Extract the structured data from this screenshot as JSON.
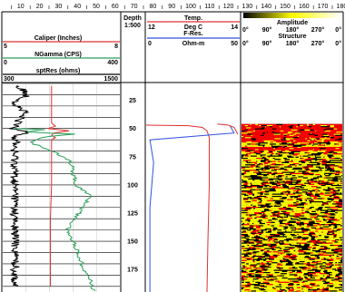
{
  "ruler": {
    "ticks": [
      10,
      20,
      30,
      40,
      50,
      60,
      70,
      80,
      90,
      100,
      110,
      120,
      130,
      140,
      150,
      160,
      170,
      180
    ]
  },
  "depth_header": {
    "title": "Depth",
    "scale": "1:500"
  },
  "left_track": {
    "curves": [
      {
        "label": "Caliper (Inches)",
        "min_label": "5",
        "max_label": "8",
        "color": "#e03030"
      },
      {
        "label": "NGamma (CPS)",
        "min_label": "0",
        "max_label": "400",
        "color": "#2aa05a"
      },
      {
        "label": "sptRes (ohms)",
        "min_label": "300",
        "max_label": "1500",
        "color": "#000000"
      }
    ]
  },
  "mid_track": {
    "curves": [
      {
        "label": "Temp.",
        "min_label": "",
        "max_label": "",
        "color": "#e03030"
      },
      {
        "label": "Deg C",
        "sublabel": "F-Res.",
        "min_label": "12",
        "max_label": "14",
        "color": "#e03030"
      },
      {
        "label": "Ohm-m",
        "min_label": "0",
        "max_label": "50",
        "color": "#3050e0"
      }
    ]
  },
  "image_track": {
    "amplitude_label": "Amplitude",
    "structure_label": "Structure",
    "angle_labels": [
      "0°",
      "90°",
      "180°",
      "270°",
      "0°"
    ],
    "colors": {
      "high": "#ff0000",
      "mid": "#ffff00",
      "low": "#000000"
    }
  },
  "chart_data": {
    "type": "line",
    "depth_range": [
      10,
      195
    ],
    "depth_ticks": [
      25,
      50,
      75,
      100,
      125,
      150,
      175
    ],
    "series": [
      {
        "name": "sptRes (ohms)",
        "color": "#000000",
        "range": [
          300,
          1500
        ],
        "depth": [
          12,
          20,
          28,
          35,
          42,
          48,
          50,
          52,
          54,
          56,
          58,
          62,
          70,
          80,
          95,
          110,
          130,
          150,
          170,
          190
        ],
        "values": [
          450,
          560,
          420,
          520,
          470,
          430,
          380,
          520,
          600,
          450,
          420,
          440,
          410,
          430,
          420,
          430,
          420,
          430,
          430,
          420
        ]
      },
      {
        "name": "Caliper (Inches)",
        "color": "#e03030",
        "range": [
          5,
          8
        ],
        "depth": [
          12,
          45,
          48,
          50,
          52,
          54,
          56,
          58,
          60,
          70,
          100,
          130,
          160,
          190
        ],
        "values": [
          6.25,
          6.25,
          6.35,
          6.15,
          6.7,
          6.3,
          6.25,
          6.35,
          6.25,
          6.25,
          6.25,
          6.22,
          6.22,
          6.22
        ]
      },
      {
        "name": "NGamma (CPS)",
        "color": "#2aa05a",
        "range": [
          0,
          400
        ],
        "depth": [
          50,
          51,
          53,
          55,
          58,
          62,
          66,
          70,
          78,
          88,
          100,
          110,
          125,
          140,
          155,
          170,
          185,
          195
        ],
        "values": [
          30,
          150,
          80,
          240,
          130,
          90,
          130,
          170,
          230,
          240,
          250,
          300,
          260,
          220,
          250,
          270,
          300,
          310
        ]
      },
      {
        "name": "Temp.",
        "color": "#e03030",
        "range": [
          12,
          14
        ],
        "depth": [
          47,
          47.5,
          49,
          52,
          58,
          70,
          100,
          150,
          195
        ],
        "values": [
          12.0,
          12.9,
          13.2,
          13.3,
          13.35,
          13.35,
          13.35,
          13.32,
          13.3
        ]
      },
      {
        "name": "Ohm-m",
        "color": "#3050e0",
        "range": [
          0,
          50
        ],
        "depth": [
          48,
          54,
          60,
          80,
          100,
          120,
          140,
          160,
          180,
          195
        ],
        "values": [
          45,
          47,
          2,
          4,
          3,
          2,
          2,
          2,
          2,
          2
        ]
      },
      {
        "name": "F-Res.",
        "color": "#e03030",
        "range": [
          0,
          50
        ],
        "depth": [
          46,
          47,
          49,
          55
        ],
        "values": [
          38,
          44,
          47,
          49
        ]
      }
    ],
    "image_start_depth": 46
  }
}
